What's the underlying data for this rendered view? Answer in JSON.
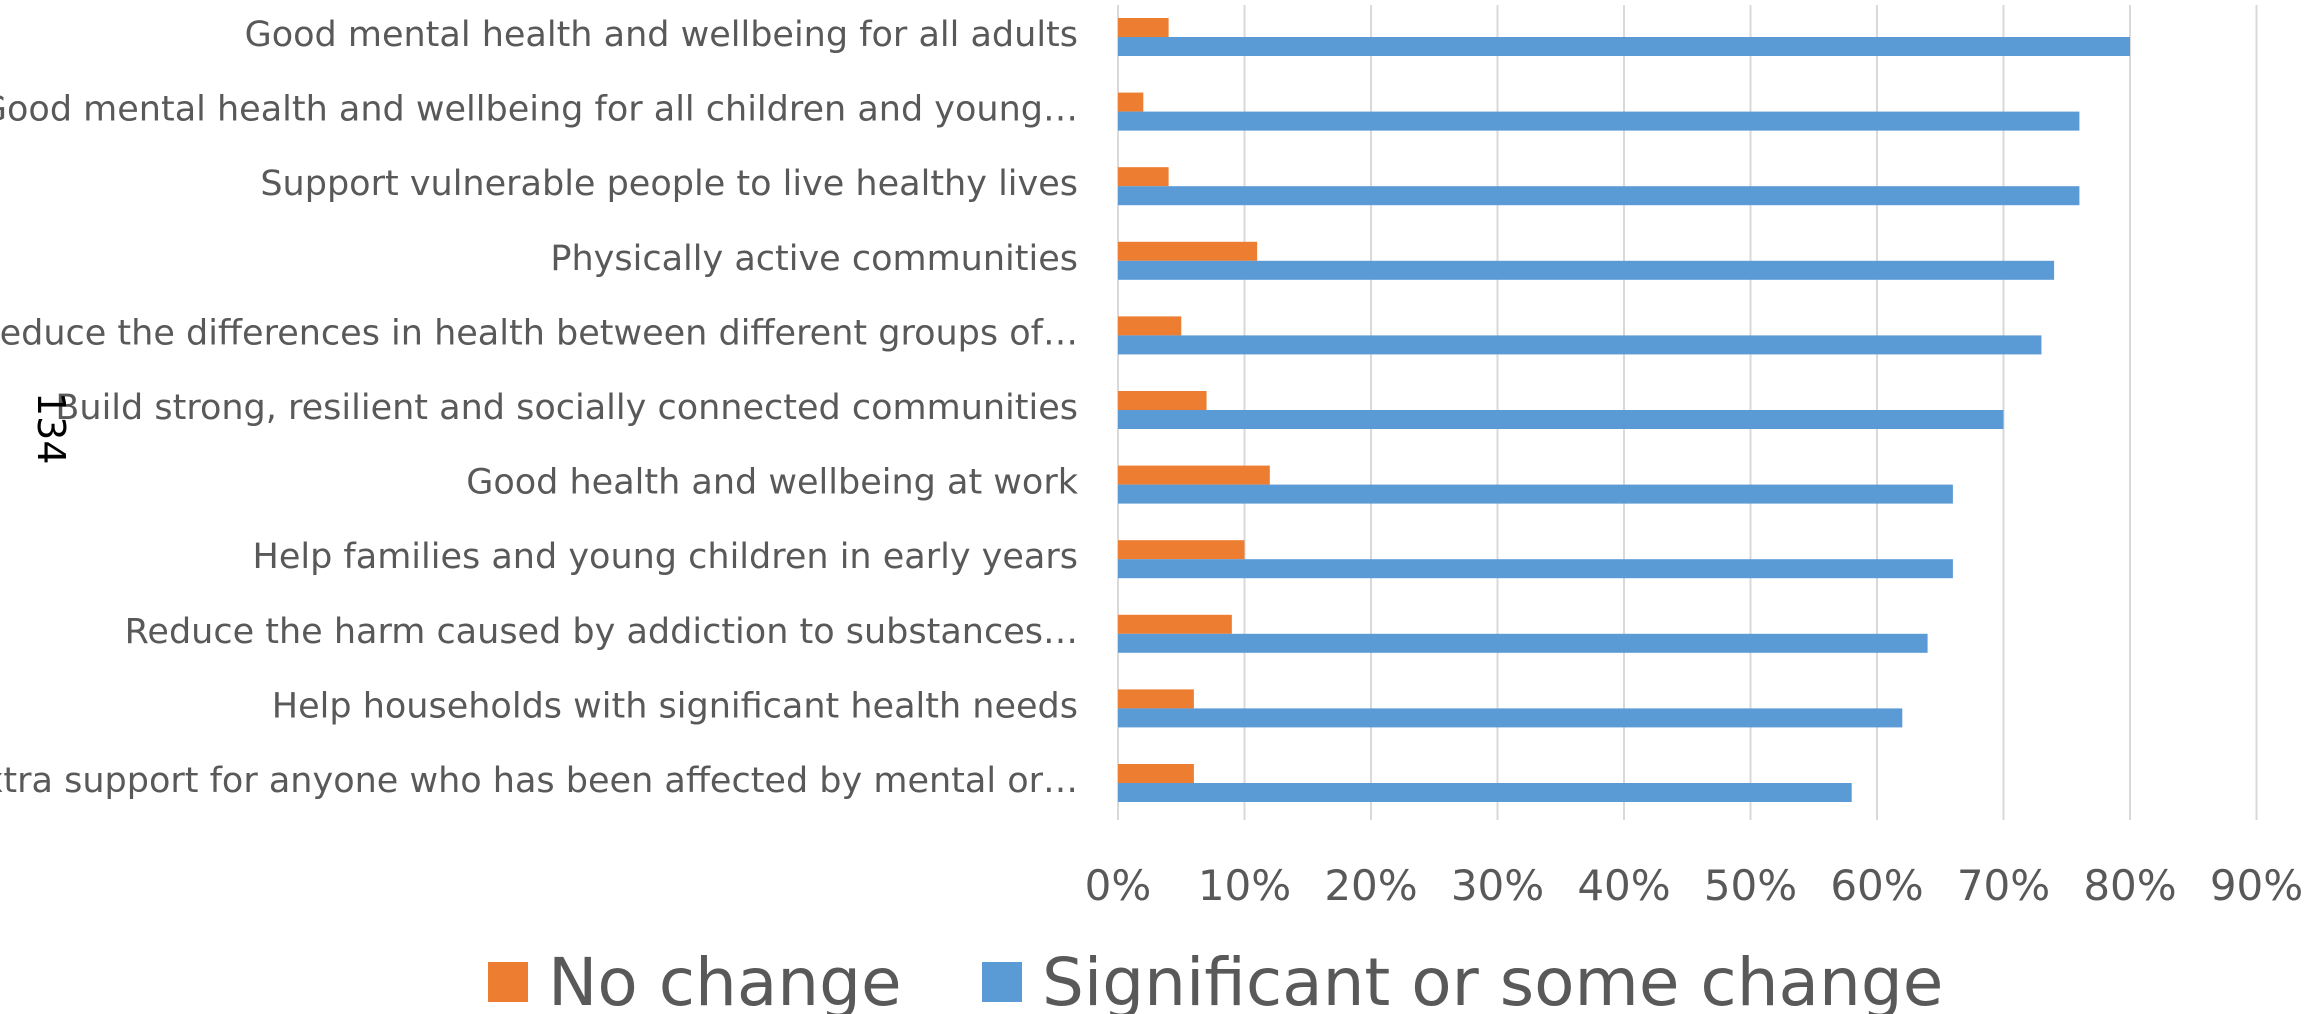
{
  "page_number": "134",
  "colors": {
    "no_change": "#ed7d31",
    "significant_change": "#5b9bd5"
  },
  "chart_data": {
    "type": "bar",
    "orientation": "horizontal",
    "categories": [
      "Good mental health and wellbeing for all adults",
      "Good mental health and wellbeing for all children and young…",
      "Support vulnerable people to live healthy lives",
      "Physically active communities",
      "Reduce the differences in health between different groups of…",
      "Build strong, resilient and socially connected communities",
      "Good health and wellbeing at work",
      "Help families and young children in early years",
      "Reduce the harm caused by addiction to substances…",
      "Help households with significant health needs",
      "Extra support for anyone who has been affected by mental or…"
    ],
    "series": [
      {
        "name": "No change",
        "color": "#ed7d31",
        "values": [
          4,
          2,
          4,
          11,
          5,
          7,
          12,
          10,
          9,
          6,
          6
        ]
      },
      {
        "name": "Significant or some change",
        "color": "#5b9bd5",
        "values": [
          80,
          76,
          76,
          74,
          73,
          70,
          66,
          66,
          64,
          62,
          58
        ]
      }
    ],
    "xticks": [
      "0%",
      "10%",
      "20%",
      "30%",
      "40%",
      "50%",
      "60%",
      "70%",
      "80%",
      "90%"
    ],
    "xlim": [
      0,
      90
    ],
    "grid": true,
    "legend_position": "bottom"
  }
}
